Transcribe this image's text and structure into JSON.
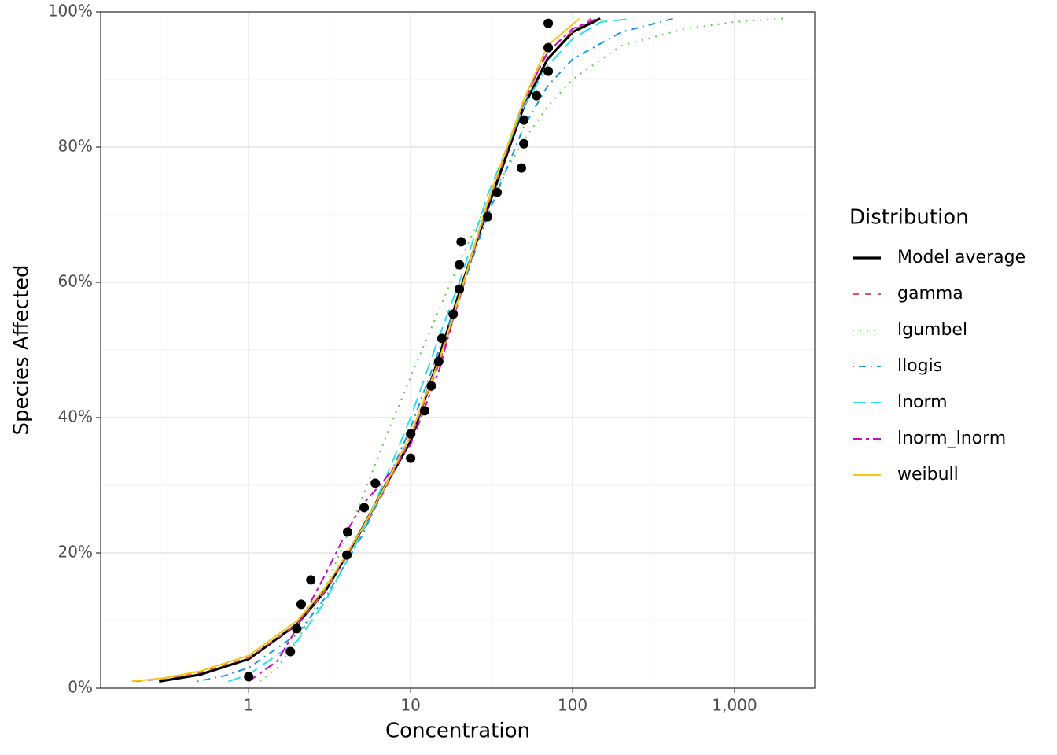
{
  "chart_data": {
    "type": "line",
    "x_label": "Concentration",
    "y_label": "Species Affected",
    "legend_title": "Distribution",
    "legend_position": "right",
    "xlog": true,
    "grid": true,
    "xlim": [
      0.122,
      3126
    ],
    "ylim": [
      0,
      100
    ],
    "xticks": [
      1,
      10,
      100,
      {
        "value": 1000,
        "label": "1,000"
      }
    ],
    "xminor": [
      0.316,
      3.16,
      31.6,
      316
    ],
    "yticks": [
      {
        "value": 0,
        "label": "0%"
      },
      {
        "value": 20,
        "label": "20%"
      },
      {
        "value": 40,
        "label": "40%"
      },
      {
        "value": 60,
        "label": "60%"
      },
      {
        "value": 80,
        "label": "80%"
      },
      {
        "value": 100,
        "label": "100%"
      }
    ],
    "yminor": [
      10,
      30,
      50,
      70,
      90
    ],
    "series": [
      {
        "name": "Model average",
        "color": "#000000",
        "linetype": "solid",
        "width": 3.2,
        "x": [
          0.28,
          0.5,
          1,
          2,
          3,
          5,
          7,
          10,
          15,
          20,
          30,
          50,
          70,
          100,
          148
        ],
        "values": [
          1,
          2,
          4.3,
          9.5,
          14.5,
          23.5,
          30,
          36.5,
          49,
          58.5,
          71,
          86,
          93,
          97,
          99
        ]
      },
      {
        "name": "gamma",
        "color": "#DF536B",
        "linetype": "dashed",
        "width": 2,
        "x": [
          0.2,
          0.3,
          0.5,
          1,
          2,
          3,
          5,
          7,
          10,
          15,
          20,
          30,
          50,
          70,
          130
        ],
        "values": [
          1,
          1.4,
          2.3,
          4.5,
          9.5,
          14.5,
          23,
          29.5,
          37,
          48,
          57.5,
          71.5,
          86.5,
          94.5,
          99
        ]
      },
      {
        "name": "lgumbel",
        "color": "#61D04F",
        "linetype": "dotted",
        "width": 2,
        "x": [
          1.17,
          1.5,
          2,
          3,
          5,
          7,
          10,
          15,
          20,
          30,
          50,
          70,
          100,
          200,
          500,
          1000,
          2000
        ],
        "values": [
          1,
          3,
          7,
          15,
          28,
          37,
          46,
          56,
          63,
          72,
          81,
          86,
          90,
          95,
          97.5,
          98.5,
          99
        ]
      },
      {
        "name": "llogis",
        "color": "#2297E6",
        "linetype": "dotdash",
        "width": 2,
        "x": [
          0.48,
          0.7,
          1,
          2,
          3,
          5,
          7,
          10,
          15,
          20,
          30,
          50,
          70,
          100,
          200,
          420
        ],
        "values": [
          1,
          1.8,
          3,
          8,
          13.5,
          22.5,
          30,
          38.5,
          50,
          58,
          70,
          83,
          89,
          93,
          97,
          99
        ]
      },
      {
        "name": "lnorm",
        "color": "#28E2E5",
        "linetype": "longdash",
        "width": 2,
        "x": [
          0.75,
          1,
          2,
          3,
          5,
          7,
          10,
          15,
          20,
          30,
          50,
          70,
          100,
          150,
          235
        ],
        "values": [
          1,
          2,
          7,
          13,
          23,
          31,
          40,
          52,
          60,
          73,
          86,
          92,
          96,
          98.5,
          99
        ]
      },
      {
        "name": "lnorm_lnorm",
        "color": "#CD0BBC",
        "linetype": "twodash",
        "width": 2,
        "x": [
          1,
          1.5,
          2,
          3,
          4,
          5,
          7,
          10,
          15,
          20,
          30,
          50,
          70,
          100,
          142
        ],
        "values": [
          1,
          4,
          9,
          17,
          23,
          27,
          31,
          36,
          47,
          58,
          72,
          87,
          94,
          97.5,
          99
        ]
      },
      {
        "name": "weibull",
        "color": "#F5C710",
        "linetype": "solid",
        "width": 2,
        "x": [
          0.19,
          0.3,
          0.5,
          1,
          2,
          3,
          5,
          7,
          10,
          15,
          20,
          30,
          50,
          70,
          110
        ],
        "values": [
          1,
          1.5,
          2.5,
          4.8,
          10,
          15,
          23.5,
          30,
          37.5,
          48.5,
          58,
          72,
          87,
          95,
          99
        ]
      }
    ],
    "points": {
      "color": "#000000",
      "x": [
        1,
        1.81,
        1.98,
        2.11,
        2.42,
        4.04,
        4.08,
        5.17,
        6.05,
        10,
        10,
        12.2,
        13.4,
        14.9,
        15.6,
        18.3,
        20,
        20,
        20.5,
        29.9,
        34.2,
        48.3,
        50,
        50,
        59.8,
        70.7,
        70.7,
        70.7
      ],
      "values": [
        1.7,
        5.4,
        8.8,
        12.4,
        16,
        19.7,
        23.1,
        26.7,
        30.3,
        34,
        37.6,
        41,
        44.7,
        48.3,
        51.7,
        55.3,
        59,
        62.6,
        66,
        69.7,
        73.3,
        76.9,
        80.5,
        84,
        87.6,
        91.2,
        94.7,
        98.3
      ]
    }
  }
}
